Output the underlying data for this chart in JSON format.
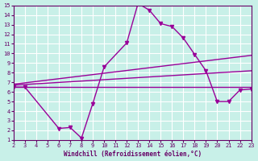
{
  "bg_color": "#c8f0e8",
  "grid_color": "#ffffff",
  "line_color": "#990099",
  "xlabel": "Windchill (Refroidissement éolien,°C)",
  "xlim": [
    2,
    23
  ],
  "ylim": [
    1,
    15
  ],
  "xticks": [
    2,
    3,
    4,
    5,
    6,
    7,
    8,
    9,
    10,
    11,
    12,
    13,
    14,
    15,
    16,
    17,
    18,
    19,
    20,
    21,
    22,
    23
  ],
  "yticks": [
    1,
    2,
    3,
    4,
    5,
    6,
    7,
    8,
    9,
    10,
    11,
    12,
    13,
    14,
    15
  ],
  "lines": [
    {
      "x": [
        2,
        3,
        6,
        7,
        8,
        9,
        10,
        12,
        13,
        14,
        15,
        16,
        17,
        18,
        19,
        20,
        21,
        22,
        23
      ],
      "y": [
        6.5,
        6.5,
        2.2,
        2.3,
        1.2,
        4.8,
        8.6,
        11.1,
        15.2,
        14.5,
        13.1,
        12.8,
        11.6,
        9.9,
        8.2,
        5.0,
        5.0,
        6.2,
        6.3
      ],
      "marker": true
    },
    {
      "x": [
        2,
        3,
        6,
        7,
        8,
        9,
        10,
        12,
        13,
        14,
        15,
        16,
        17,
        18,
        19,
        20,
        21,
        22,
        23
      ],
      "y": [
        6.5,
        6.5,
        6.5,
        6.5,
        6.5,
        6.5,
        6.5,
        6.5,
        6.5,
        6.5,
        6.5,
        6.5,
        6.5,
        6.5,
        6.5,
        6.5,
        6.5,
        6.5,
        6.5
      ],
      "marker": false
    },
    {
      "x": [
        2,
        23
      ],
      "y": [
        6.8,
        9.8
      ],
      "marker": false
    },
    {
      "x": [
        2,
        23
      ],
      "y": [
        6.7,
        8.2
      ],
      "marker": false
    }
  ]
}
